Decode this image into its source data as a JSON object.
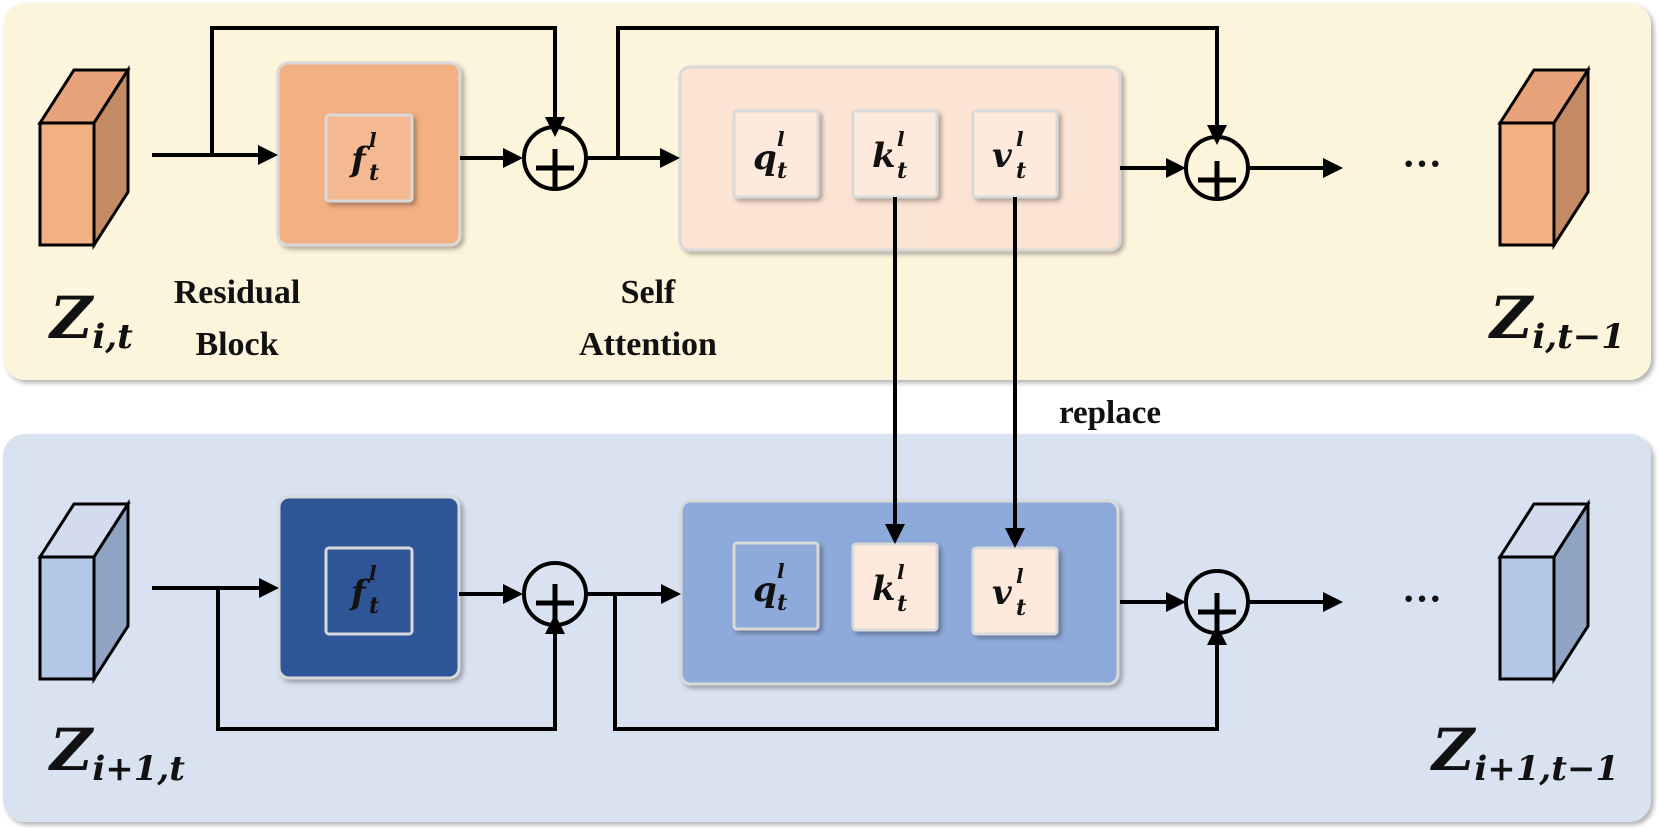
{
  "colors": {
    "top_panel_bg": "#fdf4dc",
    "bottom_panel_bg": "#d9e2f1",
    "orange_block": "#f2b083",
    "orange_inner": "#f5b991",
    "attn_top_bg": "#fbe4d4",
    "kv_box": "#fdeadc",
    "dark_blue_block": "#2f5597",
    "attn_bottom_bg": "#8eaadb",
    "q_bottom_box": "#8eaadb",
    "cube_orange_front": "#f2b083",
    "cube_orange_side": "#c48a63",
    "cube_blue_front": "#b4c7e7",
    "cube_blue_side": "#8fa3c2"
  },
  "top_row": {
    "input_label": {
      "base": "Z",
      "sub": "i,t"
    },
    "output_label": {
      "base": "Z",
      "sub": "i,t−1"
    },
    "residual_label_line1": "Residual",
    "residual_label_line2": "Block",
    "attention_label_line1": "Self",
    "attention_label_line2": "Attention",
    "feature": {
      "base": "f",
      "sup": "l",
      "sub": "t"
    },
    "q": {
      "base": "q",
      "sup": "l",
      "sub": "t"
    },
    "k": {
      "base": "k",
      "sup": "l",
      "sub": "t"
    },
    "v": {
      "base": "v",
      "sup": "l",
      "sub": "t"
    },
    "ellipsis": "···"
  },
  "bottom_row": {
    "input_label": {
      "base": "Z",
      "sub": "i+1,t"
    },
    "output_label": {
      "base": "Z",
      "sub": "i+1,t−1"
    },
    "feature": {
      "base": "f",
      "sup": "l",
      "sub": "t"
    },
    "q": {
      "base": "q",
      "sup": "l",
      "sub": "t"
    },
    "k": {
      "base": "k",
      "sup": "l",
      "sub": "t"
    },
    "v": {
      "base": "v",
      "sup": "l",
      "sub": "t"
    },
    "ellipsis": "···"
  },
  "replace_label": "replace"
}
